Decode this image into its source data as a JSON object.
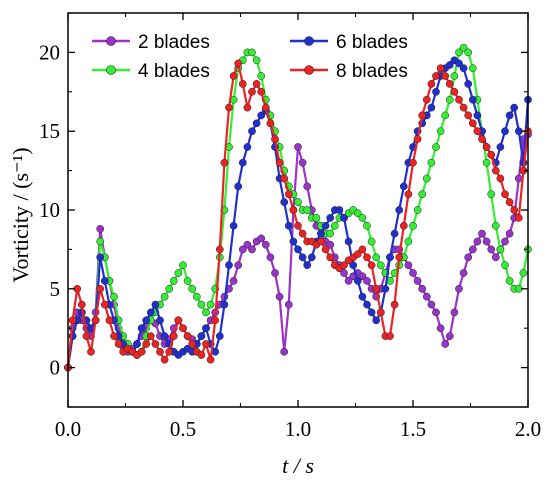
{
  "chart_data": {
    "type": "line",
    "xlabel": "t / s",
    "ylabel": "Vorticity / (s⁻¹)",
    "xlim": [
      0.0,
      2.0
    ],
    "ylim": [
      -2.5,
      22.5
    ],
    "x_ticks": [
      0.0,
      0.5,
      1.0,
      1.5,
      2.0
    ],
    "x_tick_labels": [
      "0.0",
      "0.5",
      "1.0",
      "1.5",
      "2.0"
    ],
    "y_ticks": [
      0,
      5,
      10,
      15,
      20
    ],
    "y_tick_labels": [
      "0",
      "5",
      "10",
      "15",
      "20"
    ],
    "grid": false,
    "legend_position": "top",
    "series": [
      {
        "name": "2 blades",
        "color": "#9933cc",
        "x": [
          0.0,
          0.02,
          0.04,
          0.06,
          0.08,
          0.1,
          0.12,
          0.14,
          0.16,
          0.18,
          0.2,
          0.22,
          0.24,
          0.26,
          0.28,
          0.3,
          0.32,
          0.34,
          0.36,
          0.38,
          0.4,
          0.42,
          0.44,
          0.46,
          0.48,
          0.5,
          0.52,
          0.54,
          0.56,
          0.58,
          0.6,
          0.62,
          0.64,
          0.66,
          0.68,
          0.7,
          0.72,
          0.74,
          0.76,
          0.78,
          0.8,
          0.82,
          0.84,
          0.86,
          0.88,
          0.9,
          0.92,
          0.94,
          0.96,
          0.98,
          1.0,
          1.02,
          1.04,
          1.06,
          1.08,
          1.1,
          1.12,
          1.14,
          1.16,
          1.18,
          1.2,
          1.22,
          1.24,
          1.26,
          1.28,
          1.3,
          1.32,
          1.34,
          1.36,
          1.38,
          1.4,
          1.42,
          1.44,
          1.46,
          1.48,
          1.5,
          1.52,
          1.54,
          1.56,
          1.58,
          1.6,
          1.62,
          1.64,
          1.66,
          1.68,
          1.7,
          1.72,
          1.74,
          1.76,
          1.78,
          1.8,
          1.82,
          1.84,
          1.86,
          1.88,
          1.9,
          1.92,
          1.94,
          1.96,
          1.98,
          2.0
        ],
        "y": [
          0.0,
          2.5,
          3.5,
          3.0,
          2.5,
          2.0,
          3.5,
          8.8,
          7.0,
          5.5,
          4.0,
          2.5,
          1.5,
          1.0,
          1.2,
          1.5,
          2.0,
          2.5,
          3.0,
          2.8,
          2.0,
          1.5,
          1.8,
          2.5,
          3.0,
          2.5,
          2.0,
          1.8,
          1.5,
          2.0,
          2.5,
          3.0,
          3.5,
          4.0,
          4.5,
          5.0,
          5.5,
          6.5,
          7.5,
          7.8,
          7.5,
          8.0,
          8.2,
          7.8,
          7.0,
          6.0,
          4.5,
          1.0,
          4.0,
          10.0,
          14.0,
          13.0,
          11.5,
          10.0,
          9.0,
          8.5,
          8.0,
          7.8,
          7.0,
          6.5,
          6.0,
          5.5,
          5.8,
          6.0,
          5.8,
          5.5,
          5.0,
          4.5,
          5.0,
          6.0,
          7.0,
          7.5,
          7.5,
          7.0,
          6.5,
          6.0,
          5.5,
          5.0,
          4.5,
          4.0,
          3.5,
          2.5,
          1.5,
          2.0,
          3.5,
          5.0,
          6.0,
          7.0,
          7.5,
          8.0,
          8.5,
          8.0,
          7.5,
          7.0,
          7.5,
          8.0,
          8.5,
          9.5,
          12.0,
          14.5,
          14.8
        ]
      },
      {
        "name": "4 blades",
        "color": "#33ee33",
        "x": [
          0.0,
          0.02,
          0.04,
          0.06,
          0.08,
          0.1,
          0.12,
          0.14,
          0.16,
          0.18,
          0.2,
          0.22,
          0.24,
          0.26,
          0.28,
          0.3,
          0.32,
          0.34,
          0.36,
          0.38,
          0.4,
          0.42,
          0.44,
          0.46,
          0.48,
          0.5,
          0.52,
          0.54,
          0.56,
          0.58,
          0.6,
          0.62,
          0.64,
          0.66,
          0.68,
          0.7,
          0.72,
          0.74,
          0.76,
          0.78,
          0.8,
          0.82,
          0.84,
          0.86,
          0.88,
          0.9,
          0.92,
          0.94,
          0.96,
          0.98,
          1.0,
          1.02,
          1.04,
          1.06,
          1.08,
          1.1,
          1.12,
          1.14,
          1.16,
          1.18,
          1.2,
          1.22,
          1.24,
          1.26,
          1.28,
          1.3,
          1.32,
          1.34,
          1.36,
          1.38,
          1.4,
          1.42,
          1.44,
          1.46,
          1.48,
          1.5,
          1.52,
          1.54,
          1.56,
          1.58,
          1.6,
          1.62,
          1.64,
          1.66,
          1.68,
          1.7,
          1.72,
          1.74,
          1.76,
          1.78,
          1.8,
          1.82,
          1.84,
          1.86,
          1.88,
          1.9,
          1.92,
          1.94,
          1.96,
          1.98,
          2.0
        ],
        "y": [
          0.0,
          2.0,
          3.0,
          3.5,
          3.0,
          2.5,
          3.0,
          8.0,
          7.0,
          5.5,
          4.5,
          3.0,
          2.0,
          1.5,
          1.0,
          0.8,
          1.0,
          2.0,
          3.0,
          3.5,
          4.0,
          4.5,
          5.0,
          5.5,
          6.0,
          6.5,
          5.5,
          5.0,
          4.5,
          4.0,
          3.5,
          4.0,
          5.0,
          7.0,
          10.0,
          14.0,
          17.0,
          19.0,
          19.5,
          20.0,
          20.0,
          19.5,
          18.5,
          17.0,
          16.0,
          15.0,
          14.0,
          12.5,
          11.5,
          11.0,
          10.5,
          10.0,
          10.0,
          9.5,
          9.5,
          9.0,
          8.5,
          8.5,
          9.0,
          9.5,
          9.5,
          9.8,
          10.0,
          9.8,
          9.5,
          9.0,
          8.0,
          7.0,
          6.5,
          6.0,
          5.5,
          6.0,
          6.5,
          7.0,
          8.0,
          9.0,
          10.0,
          11.0,
          12.0,
          13.0,
          14.0,
          15.0,
          16.0,
          17.0,
          18.5,
          20.0,
          20.3,
          20.0,
          19.0,
          17.0,
          15.0,
          13.0,
          11.0,
          9.0,
          7.5,
          6.5,
          5.5,
          5.0,
          5.0,
          6.0,
          7.5
        ]
      },
      {
        "name": "6 blades",
        "color": "#1f2fd0",
        "x": [
          0.0,
          0.02,
          0.04,
          0.06,
          0.08,
          0.1,
          0.12,
          0.14,
          0.16,
          0.18,
          0.2,
          0.22,
          0.24,
          0.26,
          0.28,
          0.3,
          0.32,
          0.34,
          0.36,
          0.38,
          0.4,
          0.42,
          0.44,
          0.46,
          0.48,
          0.5,
          0.52,
          0.54,
          0.56,
          0.58,
          0.6,
          0.62,
          0.64,
          0.66,
          0.68,
          0.7,
          0.72,
          0.74,
          0.76,
          0.78,
          0.8,
          0.82,
          0.84,
          0.86,
          0.88,
          0.9,
          0.92,
          0.94,
          0.96,
          0.98,
          1.0,
          1.02,
          1.04,
          1.06,
          1.08,
          1.1,
          1.12,
          1.14,
          1.16,
          1.18,
          1.2,
          1.22,
          1.24,
          1.26,
          1.28,
          1.3,
          1.32,
          1.34,
          1.36,
          1.38,
          1.4,
          1.42,
          1.44,
          1.46,
          1.48,
          1.5,
          1.52,
          1.54,
          1.56,
          1.58,
          1.6,
          1.62,
          1.64,
          1.66,
          1.68,
          1.7,
          1.72,
          1.74,
          1.76,
          1.78,
          1.8,
          1.82,
          1.84,
          1.86,
          1.88,
          1.9,
          1.92,
          1.94,
          1.96,
          1.98,
          2.0
        ],
        "y": [
          0.0,
          2.0,
          3.0,
          3.5,
          3.0,
          2.5,
          3.0,
          7.0,
          5.5,
          4.0,
          3.0,
          2.0,
          1.5,
          1.2,
          1.0,
          1.5,
          2.5,
          3.0,
          3.5,
          4.0,
          3.0,
          2.0,
          1.5,
          1.0,
          0.8,
          1.0,
          1.2,
          1.0,
          1.5,
          2.0,
          2.5,
          1.5,
          1.0,
          2.0,
          4.0,
          6.5,
          9.0,
          11.5,
          13.0,
          14.0,
          15.0,
          15.5,
          16.0,
          16.3,
          15.5,
          14.0,
          12.0,
          10.5,
          9.0,
          8.0,
          7.5,
          7.0,
          6.5,
          7.0,
          8.0,
          8.5,
          9.0,
          9.5,
          10.0,
          10.0,
          9.5,
          8.0,
          6.5,
          5.5,
          4.5,
          4.0,
          3.5,
          3.0,
          3.5,
          5.0,
          7.0,
          8.5,
          10.0,
          11.5,
          13.0,
          14.0,
          15.0,
          15.5,
          16.0,
          16.5,
          17.5,
          18.5,
          19.0,
          19.2,
          19.5,
          19.3,
          19.0,
          18.0,
          17.0,
          16.0,
          15.0,
          14.0,
          13.5,
          13.0,
          14.0,
          15.0,
          16.0,
          16.5,
          15.0,
          13.0,
          17.0
        ]
      },
      {
        "name": "8 blades",
        "color": "#ee2222",
        "x": [
          0.0,
          0.02,
          0.04,
          0.06,
          0.08,
          0.1,
          0.12,
          0.14,
          0.16,
          0.18,
          0.2,
          0.22,
          0.24,
          0.26,
          0.28,
          0.3,
          0.32,
          0.34,
          0.36,
          0.38,
          0.4,
          0.42,
          0.44,
          0.46,
          0.48,
          0.5,
          0.52,
          0.54,
          0.56,
          0.58,
          0.6,
          0.62,
          0.64,
          0.66,
          0.68,
          0.7,
          0.72,
          0.74,
          0.76,
          0.78,
          0.8,
          0.82,
          0.84,
          0.86,
          0.88,
          0.9,
          0.92,
          0.94,
          0.96,
          0.98,
          1.0,
          1.02,
          1.04,
          1.06,
          1.08,
          1.1,
          1.12,
          1.14,
          1.16,
          1.18,
          1.2,
          1.22,
          1.24,
          1.26,
          1.28,
          1.3,
          1.32,
          1.34,
          1.36,
          1.38,
          1.4,
          1.42,
          1.44,
          1.46,
          1.48,
          1.5,
          1.52,
          1.54,
          1.56,
          1.58,
          1.6,
          1.62,
          1.64,
          1.66,
          1.68,
          1.7,
          1.72,
          1.74,
          1.76,
          1.78,
          1.8,
          1.82,
          1.84,
          1.86,
          1.88,
          1.9,
          1.92,
          1.94,
          1.96,
          1.98,
          2.0
        ],
        "y": [
          0.0,
          3.0,
          5.0,
          4.0,
          2.0,
          1.0,
          3.0,
          5.0,
          4.0,
          3.0,
          2.0,
          1.5,
          1.0,
          1.2,
          1.0,
          0.8,
          1.0,
          1.5,
          2.0,
          1.5,
          1.0,
          0.5,
          1.0,
          2.0,
          3.0,
          2.5,
          2.0,
          1.5,
          1.0,
          0.8,
          1.5,
          0.5,
          3.0,
          7.5,
          13.0,
          16.5,
          18.5,
          19.3,
          18.0,
          16.5,
          17.5,
          18.0,
          17.5,
          16.5,
          15.5,
          14.5,
          13.0,
          12.0,
          11.0,
          10.0,
          9.0,
          8.5,
          8.0,
          8.0,
          7.8,
          8.0,
          7.5,
          7.0,
          6.5,
          6.3,
          6.5,
          6.8,
          7.0,
          7.2,
          7.5,
          7.0,
          6.5,
          5.0,
          3.5,
          2.0,
          2.0,
          4.0,
          7.0,
          9.0,
          11.0,
          13.0,
          14.5,
          16.0,
          17.0,
          18.0,
          18.5,
          19.0,
          18.5,
          18.0,
          17.5,
          17.0,
          16.5,
          16.0,
          15.5,
          15.0,
          14.5,
          14.0,
          13.5,
          12.5,
          12.0,
          11.0,
          10.5,
          10.0,
          9.5,
          12.5,
          15.0
        ]
      }
    ]
  }
}
